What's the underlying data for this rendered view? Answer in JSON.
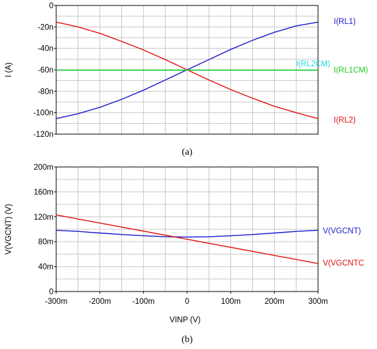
{
  "chart_data": [
    {
      "id": "a",
      "type": "line",
      "caption": "(a)",
      "ylabel": "I  (A)",
      "xlabel": "",
      "ylim": [
        -120,
        0
      ],
      "y_unit": "nA",
      "xlim": [
        -300,
        300
      ],
      "x_unit": "mV",
      "y_ticks": [
        0,
        -20,
        -40,
        -60,
        -80,
        -100,
        -120
      ],
      "y_tick_labels": [
        "0",
        "-20n",
        "-40n",
        "-60n",
        "-80n",
        "-100n",
        "-120n"
      ],
      "x_tick_labels": [],
      "grid": true,
      "series": [
        {
          "name": "I(RL1)",
          "color": "#1a1acc",
          "x": [
            -300,
            -250,
            -200,
            -150,
            -100,
            -50,
            0,
            50,
            100,
            150,
            200,
            250,
            300
          ],
          "y": [
            -105.5,
            -101,
            -95,
            -87.5,
            -79,
            -69.5,
            -60,
            -50.5,
            -41,
            -32.5,
            -25,
            -19,
            -15.5
          ]
        },
        {
          "name": "I(RL2)",
          "color": "#e01010",
          "x": [
            -300,
            -250,
            -200,
            -150,
            -100,
            -50,
            0,
            50,
            100,
            150,
            200,
            250,
            300
          ],
          "y": [
            -15.5,
            -20,
            -26,
            -33.5,
            -41.5,
            -50.5,
            -60,
            -69.5,
            -78.5,
            -86.5,
            -94,
            -100,
            -105.5
          ]
        },
        {
          "name": "I(RL2CM)",
          "color": "#22dddd",
          "x": [
            -300,
            300
          ],
          "y": [
            -60.3,
            -60.3
          ]
        },
        {
          "name": "I(RL1CM)",
          "color": "#22cc22",
          "x": [
            -300,
            300
          ],
          "y": [
            -60.3,
            -60.3
          ]
        }
      ]
    },
    {
      "id": "b",
      "type": "line",
      "caption": "(b)",
      "ylabel": "V(VGCNT)  (V)",
      "xlabel": "VINP  (V)",
      "ylim": [
        0,
        200
      ],
      "y_unit": "mV",
      "xlim": [
        -300,
        300
      ],
      "x_unit": "mV",
      "y_ticks": [
        0,
        40,
        80,
        120,
        160,
        200
      ],
      "y_tick_labels": [
        "0",
        "40m",
        "80m",
        "120m",
        "160m",
        "200m"
      ],
      "x_ticks": [
        -300,
        -200,
        -100,
        0,
        100,
        200,
        300
      ],
      "x_tick_labels": [
        "-300m",
        "-200m",
        "-100m",
        "0",
        "100m",
        "200m",
        "300m"
      ],
      "grid": true,
      "series": [
        {
          "name": "V(VGCNT)",
          "color": "#1a1acc",
          "x": [
            -300,
            -250,
            -200,
            -150,
            -100,
            -50,
            0,
            50,
            100,
            150,
            200,
            250,
            300
          ],
          "y": [
            98.5,
            96.5,
            94,
            91.5,
            89.5,
            88,
            87.5,
            88,
            89.5,
            91.5,
            94,
            96.5,
            98.5
          ]
        },
        {
          "name": "V(VGCNTCM)",
          "label_text": "V(VGCNTC",
          "color": "#e01010",
          "x": [
            -300,
            300
          ],
          "y": [
            123,
            45
          ]
        }
      ]
    }
  ]
}
